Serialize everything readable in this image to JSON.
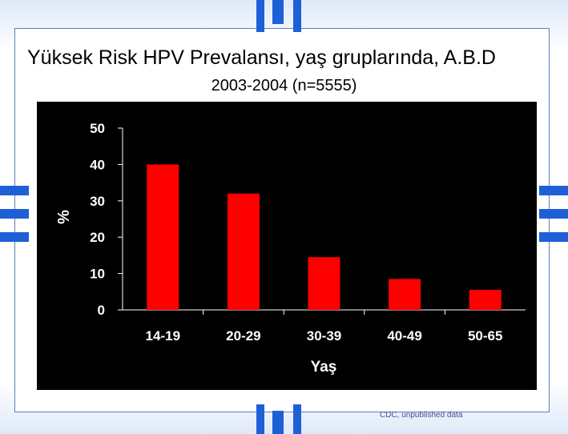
{
  "slide": {
    "title_line1": "Yüksek Risk HPV Prevalansı, yaş gruplarında, A.B.D",
    "title_line2": "2003-2004 (n=5555)",
    "footnote": "CDC, unpublished data"
  },
  "colors": {
    "chart_background": "#000000",
    "bar": "#ff0000",
    "axis_text": "#ffffff",
    "accent_blue": "#1e5fd8"
  },
  "chart_data": {
    "type": "bar",
    "categories": [
      "14-19",
      "20-29",
      "30-39",
      "40-49",
      "50-65"
    ],
    "values": [
      40,
      32,
      14.5,
      8.5,
      5.5
    ],
    "title": "",
    "xlabel": "Yaş",
    "ylabel": "%",
    "ylim": [
      0,
      50
    ],
    "yticks": [
      0,
      10,
      20,
      30,
      40,
      50
    ],
    "grid": false,
    "legend": "none"
  }
}
